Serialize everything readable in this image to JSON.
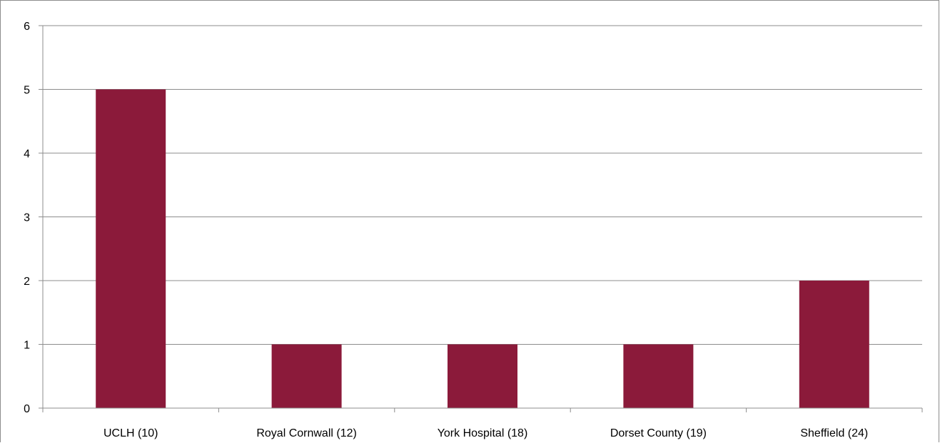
{
  "chart_data": {
    "type": "bar",
    "title": "",
    "xlabel": "",
    "ylabel": "",
    "categories": [
      "UCLH (10)",
      "Royal Cornwall (12)",
      "York Hospital (18)",
      "Dorset County (19)",
      "Sheffield (24)"
    ],
    "series": [
      {
        "values": [
          5,
          1,
          1,
          1,
          2
        ]
      }
    ],
    "ylim": [
      0,
      6
    ],
    "yticks": [
      0,
      1,
      2,
      3,
      4,
      5,
      6
    ],
    "grid": true,
    "legend": "none",
    "colors": {
      "bar": "#8B1A3A",
      "grid": "#8c8c8c",
      "axis": "#8c8c8c"
    }
  }
}
